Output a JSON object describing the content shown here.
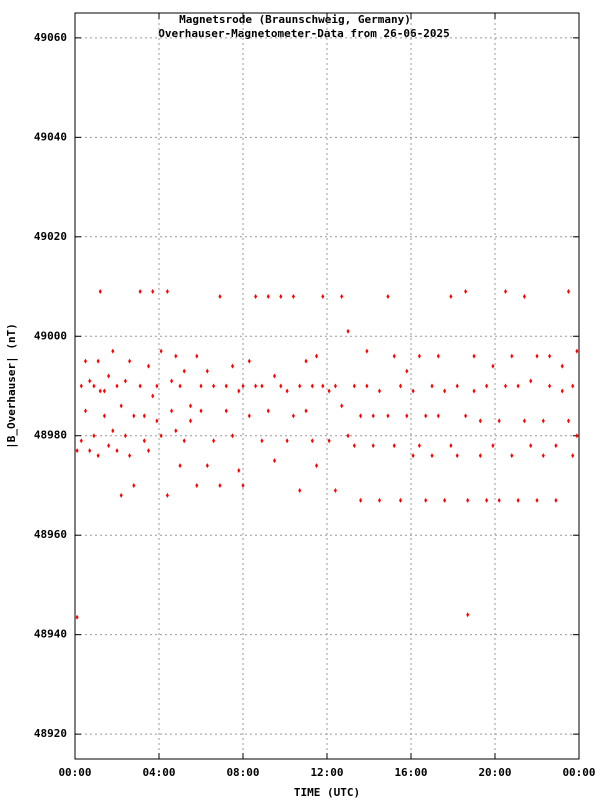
{
  "chart_data": {
    "type": "scatter",
    "title": "Magnetsrode (Braunschweig, Germany)",
    "subtitle": "Overhauser-Magnetometer-Data from 26-06-2025",
    "xlabel": "TIME (UTC)",
    "ylabel": "|B_Overhauser| (nT)",
    "color": "#ff0000",
    "grid": true,
    "xlim": [
      0,
      24
    ],
    "ylim": [
      48915,
      49065
    ],
    "xticks": [
      {
        "value": 0,
        "label": "00:00"
      },
      {
        "value": 4,
        "label": "04:00"
      },
      {
        "value": 8,
        "label": "08:00"
      },
      {
        "value": 12,
        "label": "12:00"
      },
      {
        "value": 16,
        "label": "16:00"
      },
      {
        "value": 20,
        "label": "20:00"
      },
      {
        "value": 24,
        "label": "00:00"
      }
    ],
    "yticks": [
      48920,
      48940,
      48960,
      48980,
      49000,
      49020,
      49040,
      49060
    ],
    "x": [
      0.1,
      0.1,
      0.3,
      0.3,
      0.5,
      0.5,
      0.7,
      0.7,
      0.9,
      0.9,
      1.1,
      1.1,
      1.2,
      1.2,
      1.4,
      1.4,
      1.6,
      1.6,
      1.8,
      1.8,
      2.0,
      2.0,
      2.2,
      2.2,
      2.4,
      2.4,
      2.6,
      2.6,
      2.8,
      2.8,
      3.1,
      3.1,
      3.3,
      3.3,
      3.5,
      3.5,
      3.7,
      3.7,
      3.9,
      3.9,
      4.1,
      4.1,
      4.4,
      4.4,
      4.6,
      4.6,
      4.8,
      4.8,
      5.0,
      5.0,
      5.2,
      5.2,
      5.5,
      5.5,
      5.8,
      5.8,
      6.0,
      6.0,
      6.3,
      6.3,
      6.6,
      6.6,
      6.9,
      6.9,
      7.2,
      7.2,
      7.5,
      7.5,
      7.8,
      7.8,
      8.0,
      8.0,
      8.3,
      8.3,
      8.6,
      8.6,
      8.9,
      8.9,
      9.2,
      9.2,
      9.5,
      9.5,
      9.8,
      9.8,
      10.1,
      10.1,
      10.4,
      10.4,
      10.7,
      10.7,
      11.0,
      11.0,
      11.3,
      11.3,
      11.5,
      11.5,
      11.8,
      11.8,
      12.1,
      12.1,
      12.4,
      12.4,
      12.7,
      12.7,
      13.0,
      13.0,
      13.3,
      13.3,
      13.6,
      13.6,
      13.9,
      13.9,
      14.2,
      14.2,
      14.5,
      14.5,
      14.9,
      14.9,
      15.2,
      15.2,
      15.5,
      15.5,
      15.8,
      15.8,
      16.1,
      16.1,
      16.4,
      16.4,
      16.7,
      16.7,
      17.0,
      17.0,
      17.3,
      17.3,
      17.6,
      17.6,
      17.9,
      17.9,
      18.2,
      18.2,
      18.6,
      18.6,
      18.7,
      18.7,
      19.0,
      19.0,
      19.3,
      19.3,
      19.6,
      19.6,
      19.9,
      19.9,
      20.2,
      20.2,
      20.5,
      20.5,
      20.8,
      20.8,
      21.1,
      21.1,
      21.4,
      21.4,
      21.7,
      21.7,
      22.0,
      22.0,
      22.3,
      22.3,
      22.6,
      22.6,
      22.9,
      22.9,
      23.2,
      23.2,
      23.5,
      23.5,
      23.7,
      23.7,
      23.9,
      23.9
    ],
    "values": [
      48977,
      48943.5,
      48990,
      48979,
      48995,
      48985,
      48991,
      48977,
      48990,
      48980,
      48995,
      48976,
      49009,
      48989,
      48989,
      48984,
      48992,
      48978,
      48997,
      48981,
      48990,
      48977,
      48986,
      48968,
      48991,
      48980,
      48995,
      48976,
      48984,
      48970,
      49009,
      48990,
      48984,
      48979,
      48994,
      48977,
      49009,
      48988,
      48990,
      48983,
      48997,
      48980,
      49009,
      48968,
      48991,
      48985,
      48996,
      48981,
      48990,
      48974,
      48993,
      48979,
      48986,
      48983,
      48996,
      48970,
      48990,
      48985,
      48993,
      48974,
      48990,
      48979,
      49008,
      48970,
      48990,
      48985,
      48994,
      48980,
      48989,
      48973,
      48990,
      48970,
      48995,
      48984,
      49008,
      48990,
      48990,
      48979,
      49008,
      48985,
      48992,
      48975,
      49008,
      48990,
      48989,
      48979,
      49008,
      48984,
      48990,
      48969,
      48995,
      48985,
      48990,
      48979,
      48996,
      48974,
      49008,
      48990,
      48989,
      48979,
      48990,
      48969,
      49008,
      48986,
      49001,
      48980,
      48990,
      48978,
      48984,
      48967,
      48997,
      48990,
      48984,
      48978,
      48989,
      48967,
      49008,
      48984,
      48996,
      48978,
      48990,
      48967,
      48993,
      48984,
      48989,
      48976,
      48996,
      48978,
      48984,
      48967,
      48990,
      48976,
      48996,
      48984,
      48989,
      48967,
      49008,
      48978,
      48990,
      48976,
      49009,
      48984,
      48944,
      48967,
      48996,
      48989,
      48983,
      48976,
      48990,
      48967,
      48994,
      48978,
      48983,
      48967,
      49009,
      48990,
      48996,
      48976,
      48990,
      48967,
      49008,
      48983,
      48991,
      48978,
      48996,
      48967,
      48983,
      48976,
      48990,
      48996,
      48978,
      48967,
      48994,
      48989,
      49009,
      48983,
      48976,
      48990,
      48997,
      48980
    ]
  }
}
